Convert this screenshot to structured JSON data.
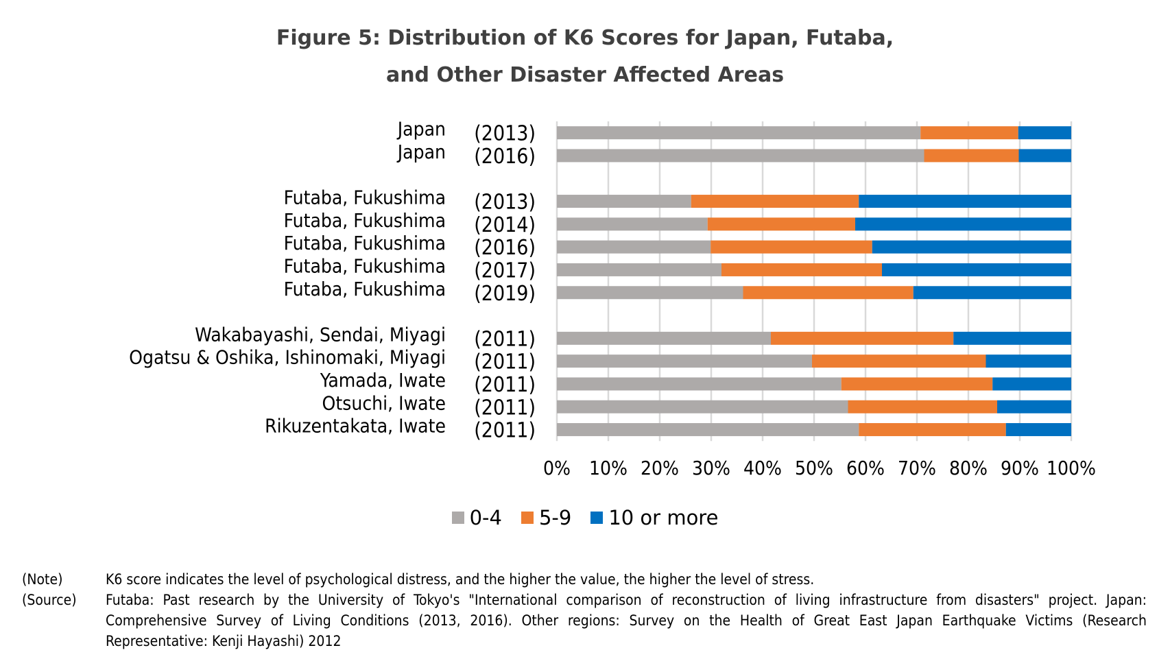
{
  "title": {
    "line1": "Figure 5: Distribution of K6 Scores for Japan, Futaba,",
    "line2": "and Other Disaster Affected Areas"
  },
  "chart_data": {
    "type": "bar",
    "orientation": "horizontal",
    "stacked": "percent",
    "title": "Figure 5: Distribution of K6 Scores for Japan, Futaba, and Other Disaster Affected Areas",
    "xlabel": "",
    "ylabel": "",
    "xlim": [
      0,
      100
    ],
    "x_ticks": [
      "0%",
      "10%",
      "20%",
      "30%",
      "40%",
      "50%",
      "60%",
      "70%",
      "80%",
      "90%",
      "100%"
    ],
    "grid": "vertical",
    "legend_position": "bottom",
    "categories": [
      {
        "name": "Japan",
        "year": "(2013)"
      },
      {
        "name": "Japan",
        "year": "(2016)"
      },
      {
        "name": "",
        "year": "",
        "spacer": true
      },
      {
        "name": "Futaba, Fukushima",
        "year": "(2013)"
      },
      {
        "name": "Futaba, Fukushima",
        "year": "(2014)"
      },
      {
        "name": "Futaba, Fukushima",
        "year": "(2016)"
      },
      {
        "name": "Futaba, Fukushima",
        "year": "(2017)"
      },
      {
        "name": "Futaba, Fukushima",
        "year": "(2019)"
      },
      {
        "name": "",
        "year": "",
        "spacer": true
      },
      {
        "name": "Wakabayashi, Sendai, Miyagi",
        "year": "(2011)"
      },
      {
        "name": "Ogatsu & Oshika, Ishinomaki, Miyagi",
        "year": "(2011)"
      },
      {
        "name": "Yamada, Iwate",
        "year": "(2011)"
      },
      {
        "name": "Otsuchi, Iwate",
        "year": "(2011)"
      },
      {
        "name": "Rikuzentakata, Iwate",
        "year": "(2011)"
      }
    ],
    "series": [
      {
        "name": "0-4",
        "color": "#ADAAA9",
        "values": [
          70.7,
          71.4,
          null,
          26.1,
          29.3,
          29.9,
          32.0,
          36.2,
          null,
          41.6,
          49.6,
          55.3,
          56.6,
          58.7
        ]
      },
      {
        "name": "5-9",
        "color": "#ED7D31",
        "values": [
          19.0,
          18.4,
          null,
          32.6,
          28.7,
          31.4,
          31.2,
          33.1,
          null,
          35.5,
          33.8,
          29.4,
          29.0,
          28.6
        ]
      },
      {
        "name": "10 or more",
        "color": "#0070C0",
        "values": [
          10.3,
          10.2,
          null,
          41.3,
          42.0,
          38.7,
          36.8,
          30.7,
          null,
          22.9,
          16.6,
          15.3,
          14.4,
          12.7
        ]
      }
    ]
  },
  "legend": [
    {
      "label": "0-4",
      "color": "#ADAAA9"
    },
    {
      "label": "5-9",
      "color": "#ED7D31"
    },
    {
      "label": "10 or more",
      "color": "#0070C0"
    }
  ],
  "notes": {
    "note_label": "(Note)",
    "note_text": "K6 score indicates the level of psychological distress, and the higher the value, the higher the level of stress.",
    "source_label": "(Source)",
    "source_text": "Futaba: Past research by the University of Tokyo's \"International comparison of reconstruction of living infrastructure from disasters\" project. Japan: Comprehensive Survey of Living Conditions (2013, 2016). Other regions: Survey on the Health of Great East Japan Earthquake Victims (Research Representative: Kenji Hayashi) 2012"
  }
}
